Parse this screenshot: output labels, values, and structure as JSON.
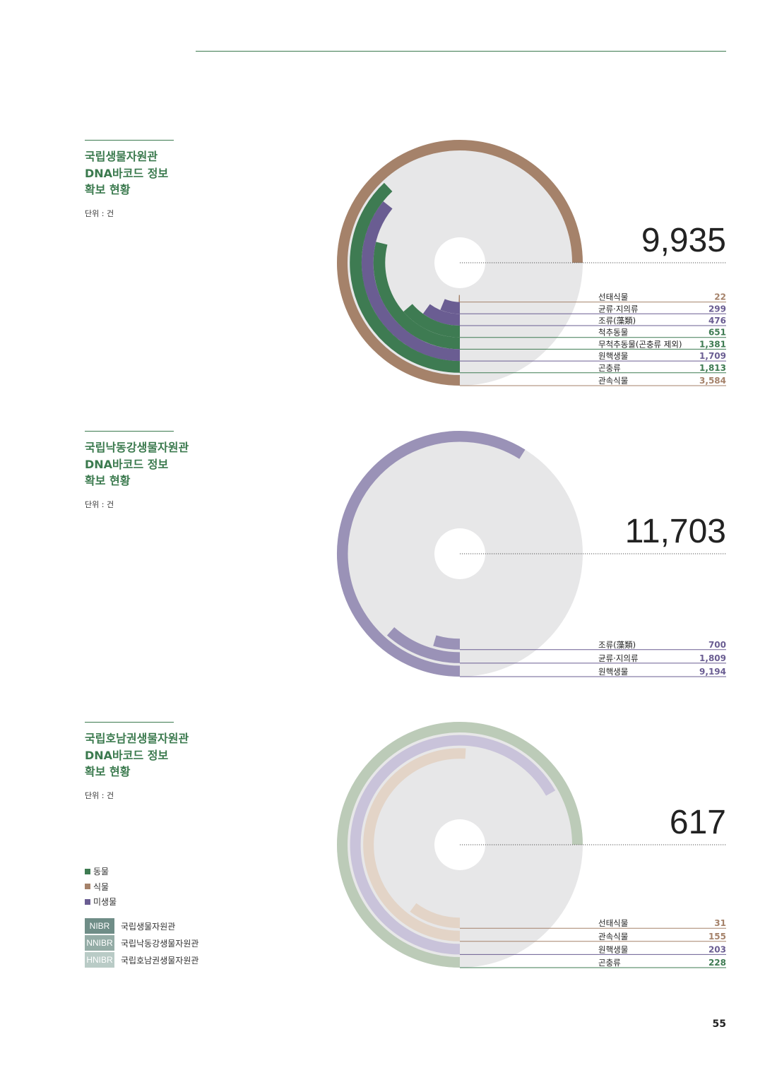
{
  "colors": {
    "animal": "#3e7b52",
    "plant": "#a5826a",
    "micro": "#6a5d92",
    "disc": "#e7e7e8",
    "line": "#3b7a4e"
  },
  "legend": [
    {
      "label": "동물",
      "color": "#3e7b52"
    },
    {
      "label": "식물",
      "color": "#a5826a"
    },
    {
      "label": "미생물",
      "color": "#6a5d92"
    }
  ],
  "orgs": [
    {
      "code": "NIBR",
      "name": "국립생물자원관",
      "color": "#6f8d87"
    },
    {
      "code": "NNIBR",
      "name": "국립낙동강생물자원관",
      "color": "#94aca6"
    },
    {
      "code": "HNIBR",
      "name": "국립호남권생물자원관",
      "color": "#b9cbc6"
    }
  ],
  "page_number": "55",
  "sections": [
    {
      "title": [
        "국립생물자원관",
        "DNA바코드 정보",
        "확보 현황"
      ],
      "unit": "단위 : 건",
      "chart_data": {
        "type": "radial_bar",
        "total": "9,935",
        "max": 3584,
        "style": "solid",
        "series": [
          {
            "name": "선태식물",
            "value": 22,
            "display": "22",
            "group": "plant"
          },
          {
            "name": "균류·지의류",
            "value": 299,
            "display": "299",
            "group": "micro"
          },
          {
            "name": "조류(藻類)",
            "value": 476,
            "display": "476",
            "group": "micro"
          },
          {
            "name": "척추동물",
            "value": 651,
            "display": "651",
            "group": "animal"
          },
          {
            "name": "무척추동물(곤충류 제외)",
            "value": 1381,
            "display": "1,381",
            "group": "animal"
          },
          {
            "name": "원핵생물",
            "value": 1709,
            "display": "1,709",
            "group": "micro"
          },
          {
            "name": "곤충류",
            "value": 1813,
            "display": "1,813",
            "group": "animal"
          },
          {
            "name": "관속식물",
            "value": 3584,
            "display": "3,584",
            "group": "plant"
          }
        ]
      }
    },
    {
      "title": [
        "국립낙동강생물자원관",
        "DNA바코드 정보",
        "확보 현황"
      ],
      "unit": "단위 : 건",
      "chart_data": {
        "type": "radial_bar",
        "total": "11,703",
        "max": 11703,
        "style": "nnibr",
        "series": [
          {
            "name": "조류(藻類)",
            "value": 700,
            "display": "700",
            "group": "micro"
          },
          {
            "name": "균류·지의류",
            "value": 1809,
            "display": "1,809",
            "group": "micro"
          },
          {
            "name": "원핵생물",
            "value": 9194,
            "display": "9,194",
            "group": "micro"
          }
        ]
      }
    },
    {
      "title": [
        "국립호남권생물자원관",
        "DNA바코드 정보",
        "확보 현황"
      ],
      "unit": "단위 : 건",
      "chart_data": {
        "type": "radial_bar",
        "total": "617",
        "max": 228,
        "style": "hnibr",
        "series": [
          {
            "name": "선태식물",
            "value": 31,
            "display": "31",
            "group": "plant"
          },
          {
            "name": "관속식물",
            "value": 155,
            "display": "155",
            "group": "plant"
          },
          {
            "name": "원핵생물",
            "value": 203,
            "display": "203",
            "group": "micro"
          },
          {
            "name": "곤충류",
            "value": 228,
            "display": "228",
            "group": "animal"
          }
        ]
      }
    }
  ]
}
